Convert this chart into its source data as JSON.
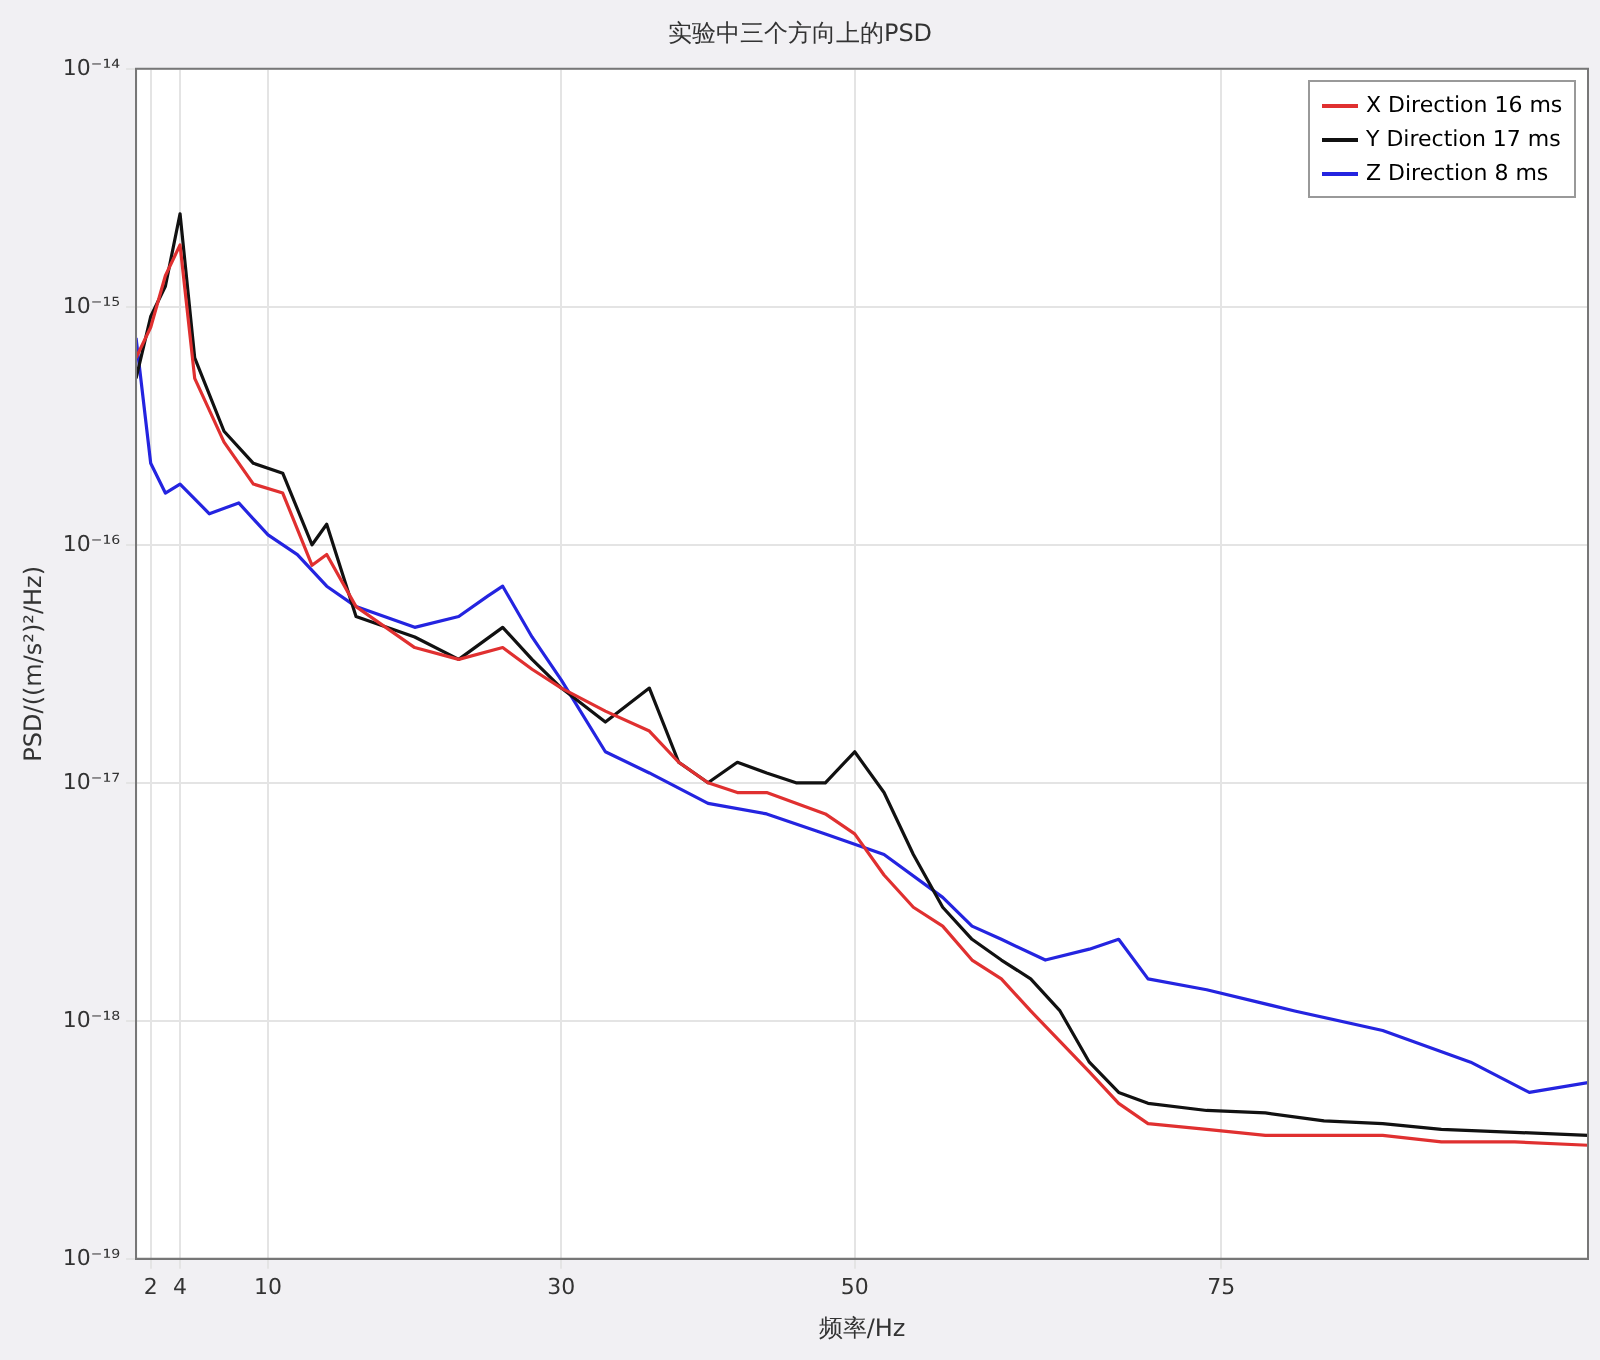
{
  "chart_data": {
    "type": "line",
    "title": "实验中三个方向上的PSD",
    "xlabel": "频率/Hz",
    "ylabel": "PSD/((m/s²)²/Hz)",
    "log": "y",
    "grid": true,
    "legend": "top right",
    "marker": "none",
    "line_style": "solid",
    "xlim": [
      1,
      100
    ],
    "xticks": [
      2,
      4,
      10,
      30,
      50,
      75
    ],
    "ylim": [
      1e-19,
      1e-14
    ],
    "yticks": [
      {
        "value": 1e-19,
        "label": "10⁻¹⁹"
      },
      {
        "value": 1e-18,
        "label": "10⁻¹⁸"
      },
      {
        "value": 1e-17,
        "label": "10⁻¹⁷"
      },
      {
        "value": 1e-16,
        "label": "10⁻¹⁶"
      },
      {
        "value": 1e-15,
        "label": "10⁻¹⁵"
      },
      {
        "value": 1e-14,
        "label": "10⁻¹⁴"
      }
    ],
    "series": [
      {
        "name": "X Direction 16 ms",
        "color": "#e03030",
        "x": [
          1,
          2,
          3,
          4,
          5,
          7,
          9,
          11,
          13,
          14,
          16,
          20,
          23,
          26,
          28,
          30,
          33,
          36,
          38,
          40,
          42,
          44,
          46,
          48,
          50,
          52,
          54,
          56,
          58,
          60,
          62,
          64,
          66,
          68,
          70,
          74,
          78,
          82,
          86,
          90,
          95,
          100
        ],
        "values": [
          6.1e-16,
          8.2e-16,
          1.35e-15,
          1.82e-15,
          5e-16,
          2.7e-16,
          1.8e-16,
          1.65e-16,
          8.2e-17,
          9.1e-17,
          5.5e-17,
          3.7e-17,
          3.3e-17,
          3.7e-17,
          3e-17,
          2.5e-17,
          2e-17,
          1.65e-17,
          1.22e-17,
          1e-17,
          9.1e-18,
          9.1e-18,
          8.2e-18,
          7.4e-18,
          6.1e-18,
          4.1e-18,
          3e-18,
          2.5e-18,
          1.8e-18,
          1.5e-18,
          1.1e-18,
          8.2e-19,
          6.1e-19,
          4.5e-19,
          3.7e-19,
          3.5e-19,
          3.3e-19,
          3.3e-19,
          3.3e-19,
          3.1e-19,
          3.1e-19,
          3e-19
        ]
      },
      {
        "name": "Y Direction 17 ms",
        "color": "#111111",
        "x": [
          1,
          2,
          3,
          4,
          5,
          7,
          9,
          11,
          13,
          14,
          16,
          20,
          23,
          26,
          28,
          30,
          33,
          36,
          38,
          40,
          42,
          44,
          46,
          48,
          50,
          52,
          54,
          56,
          58,
          60,
          62,
          64,
          66,
          68,
          70,
          74,
          78,
          82,
          86,
          90,
          95,
          100
        ],
        "values": [
          5e-16,
          9.1e-16,
          1.22e-15,
          2.46e-15,
          6.1e-16,
          3e-16,
          2.2e-16,
          2e-16,
          1e-16,
          1.22e-16,
          5e-17,
          4.1e-17,
          3.3e-17,
          4.5e-17,
          3.3e-17,
          2.5e-17,
          1.8e-17,
          2.5e-17,
          1.22e-17,
          1e-17,
          1.22e-17,
          1.1e-17,
          1e-17,
          1e-17,
          1.35e-17,
          9.1e-18,
          5e-18,
          3e-18,
          2.2e-18,
          1.8e-18,
          1.5e-18,
          1.1e-18,
          6.7e-19,
          5e-19,
          4.5e-19,
          4.2e-19,
          4.1e-19,
          3.8e-19,
          3.7e-19,
          3.5e-19,
          3.4e-19,
          3.3e-19
        ]
      },
      {
        "name": "Z Direction 8 ms",
        "color": "#2424e0",
        "x": [
          1,
          2,
          3,
          4,
          6,
          8,
          10,
          12,
          14,
          16,
          20,
          23,
          25,
          26,
          28,
          30,
          33,
          36,
          40,
          44,
          48,
          52,
          56,
          58,
          60,
          63,
          66,
          68,
          70,
          74,
          80,
          86,
          92,
          96,
          100
        ],
        "values": [
          7.4e-16,
          2.2e-16,
          1.65e-16,
          1.8e-16,
          1.35e-16,
          1.5e-16,
          1.1e-16,
          9.1e-17,
          6.7e-17,
          5.5e-17,
          4.5e-17,
          5e-17,
          6.1e-17,
          6.7e-17,
          4.1e-17,
          2.7e-17,
          1.35e-17,
          1.1e-17,
          8.2e-18,
          7.4e-18,
          6.1e-18,
          5e-18,
          3.3e-18,
          2.5e-18,
          2.2e-18,
          1.8e-18,
          2e-18,
          2.2e-18,
          1.5e-18,
          1.35e-18,
          1.1e-18,
          9.1e-19,
          6.7e-19,
          5e-19,
          5.5e-19
        ]
      }
    ]
  }
}
